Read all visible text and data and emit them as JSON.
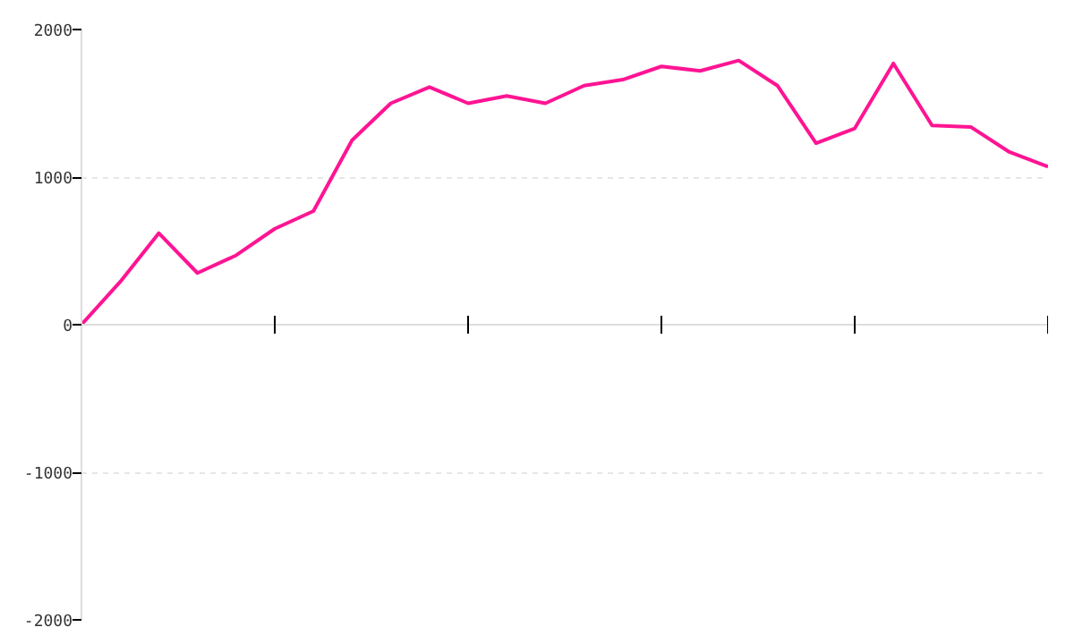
{
  "chart_data": {
    "type": "line",
    "categories": [
      null,
      null,
      null,
      null,
      null,
      null,
      null,
      null,
      null,
      null,
      null,
      null,
      null,
      null,
      null,
      null,
      null,
      null,
      null,
      null,
      null,
      null,
      null,
      null,
      null,
      null
    ],
    "series": [
      {
        "color": "#ff1493",
        "values": [
          0,
          290,
          620,
          350,
          470,
          650,
          770,
          1250,
          1500,
          1610,
          1500,
          1550,
          1500,
          1620,
          1660,
          1750,
          1720,
          1790,
          1620,
          1230,
          1330,
          1770,
          1350,
          1340,
          1170,
          1070
        ]
      }
    ],
    "ylim": [
      -2000,
      2000
    ],
    "yticks": [
      -2000,
      -1000,
      0,
      1000,
      2000
    ],
    "grid": "y",
    "tick_labels": "y",
    "marker": "none",
    "line_style": "solid"
  }
}
